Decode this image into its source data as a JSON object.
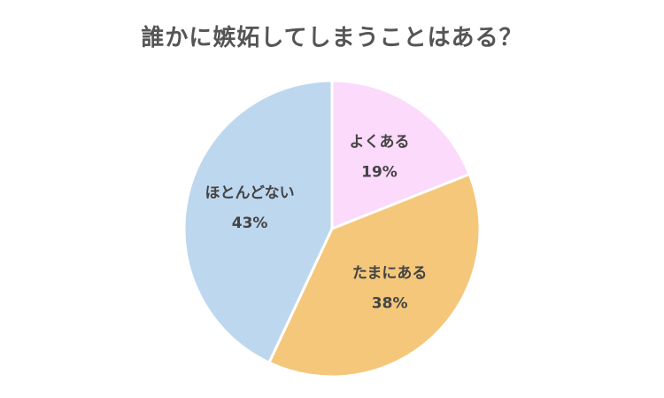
{
  "chart_data": {
    "type": "pie",
    "title": "誰かに嫉妬してしまうことはある？",
    "slices": [
      {
        "label": "よくある",
        "value": 19,
        "percent_label": "19%",
        "color": "#FBDAFB"
      },
      {
        "label": "たまにある",
        "value": 38,
        "percent_label": "38%",
        "color": "#F4C77B"
      },
      {
        "label": "ほとんどない",
        "value": 43,
        "percent_label": "43%",
        "color": "#BDD7EE"
      }
    ],
    "legend": "none"
  }
}
